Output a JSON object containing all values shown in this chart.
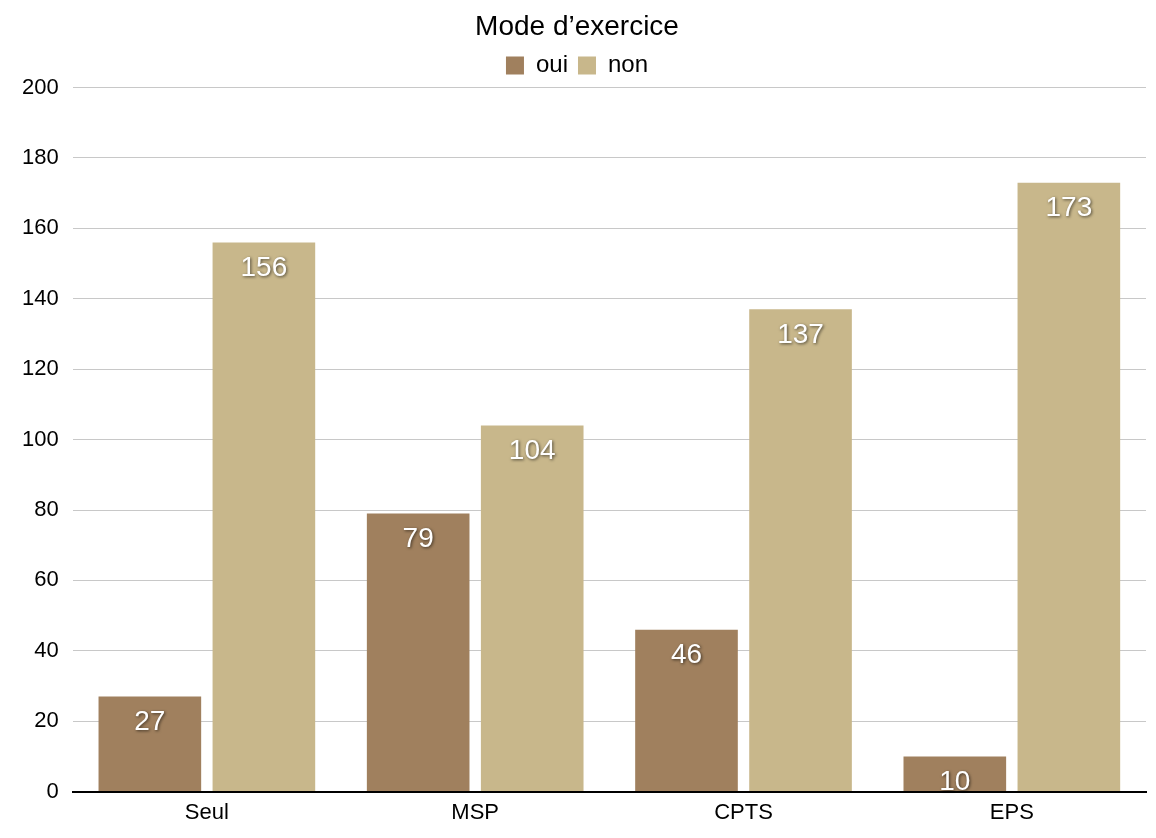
{
  "chart_data": {
    "type": "bar",
    "title": "Mode d’exercice",
    "categories": [
      "Seul",
      "MSP",
      "CPTS",
      "EPS"
    ],
    "series": [
      {
        "name": "oui",
        "color": "#a0805e",
        "values": [
          27,
          79,
          46,
          10
        ]
      },
      {
        "name": "non",
        "color": "#c8b78b",
        "values": [
          156,
          104,
          137,
          173
        ]
      }
    ],
    "ylim": [
      0,
      200
    ],
    "yticks": [
      0,
      20,
      40,
      60,
      80,
      100,
      120,
      140,
      160,
      180,
      200
    ],
    "grid": "y",
    "legend": "top",
    "data_labels": true
  }
}
